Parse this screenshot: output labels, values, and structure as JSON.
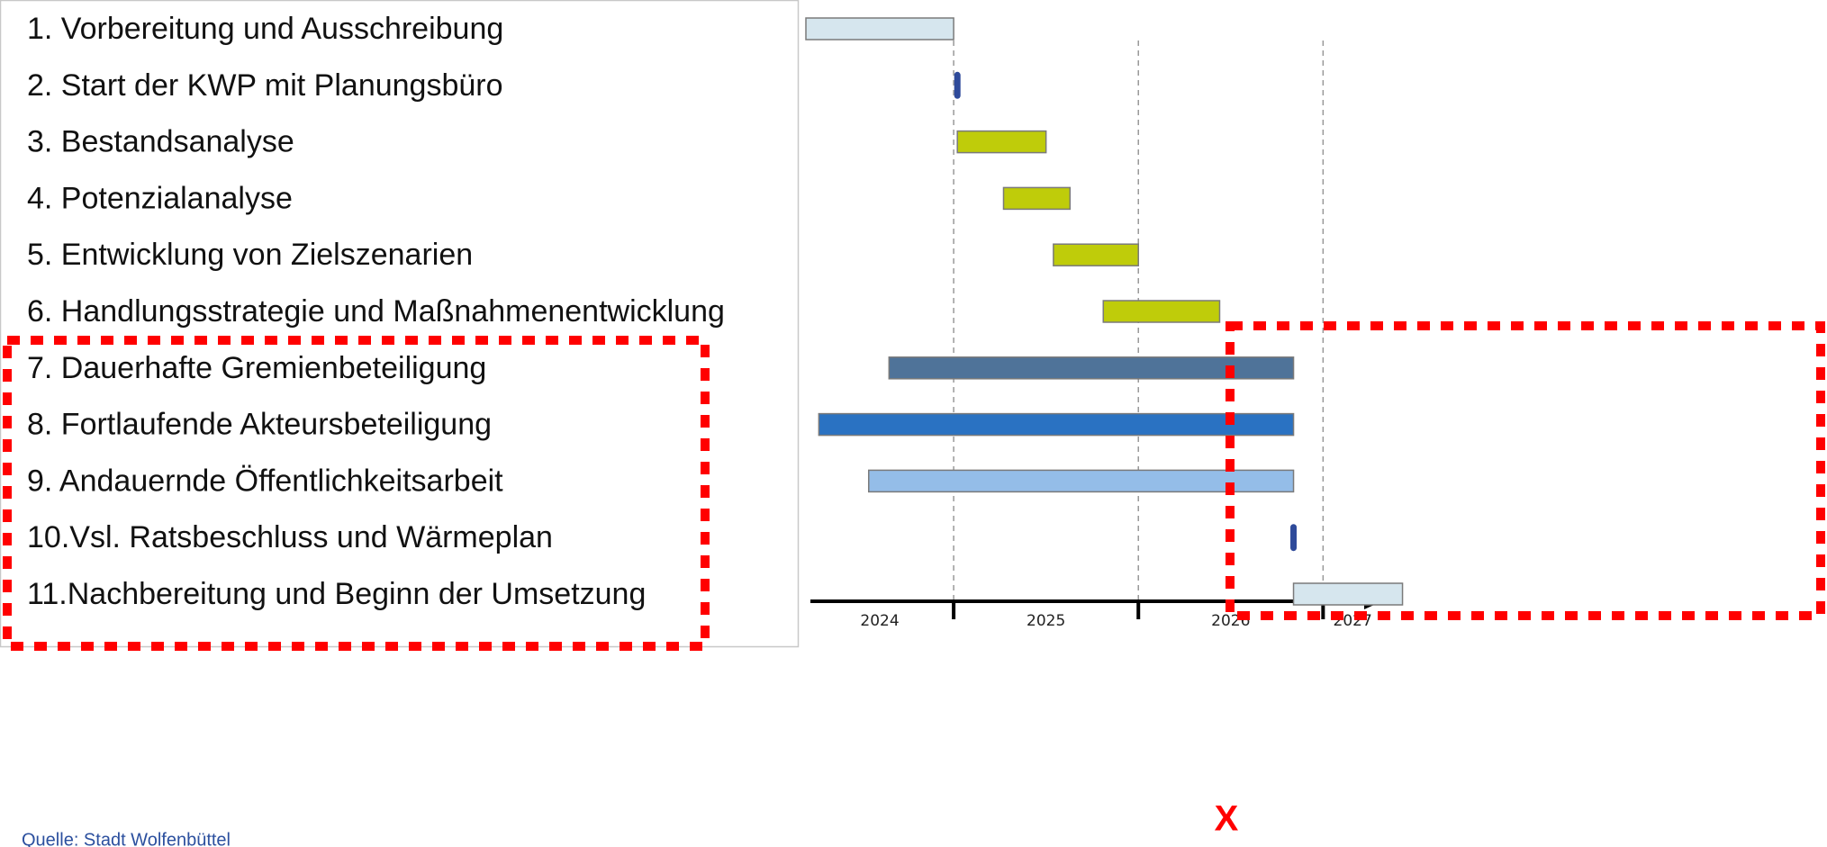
{
  "chart_data": {
    "type": "gantt",
    "tasks": [
      {
        "label": "1. Vorbereitung und Ausschreibung",
        "start": 2024.2,
        "end": 2025.0,
        "color": "#d6e6ee"
      },
      {
        "label": "2. Start der KWP mit Planungsbüro",
        "start": 2025.02,
        "end": 2025.02,
        "color": "#2e4a9a"
      },
      {
        "label": "3. Bestandsanalyse",
        "start": 2025.02,
        "end": 2025.5,
        "color": "#bfcc0a"
      },
      {
        "label": "4. Potenzialanalyse",
        "start": 2025.27,
        "end": 2025.63,
        "color": "#bfcc0a"
      },
      {
        "label": "5. Entwicklung von Zielszenarien",
        "start": 2025.54,
        "end": 2026.0,
        "color": "#bfcc0a"
      },
      {
        "label": "6. Handlungsstrategie und Maßnahmenentwicklung",
        "start": 2025.81,
        "end": 2026.44,
        "color": "#bfcc0a"
      },
      {
        "label": "7. Dauerhafte Gremienbeteiligung",
        "start": 2024.65,
        "end": 2026.84,
        "color": "#4f7399"
      },
      {
        "label": "8. Fortlaufende Akteursbeteiligung",
        "start": 2024.27,
        "end": 2026.84,
        "color": "#2a72c2"
      },
      {
        "label": "9. Andauernde Öffentlichkeitsarbeit",
        "start": 2024.54,
        "end": 2026.84,
        "color": "#94bde8"
      },
      {
        "label": "10.Vsl. Ratsbeschluss und Wärmeplan",
        "start": 2026.84,
        "end": 2026.84,
        "color": "#2e4a9a"
      },
      {
        "label": "11.Nachbereitung und Beginn der Umsetzung",
        "start": 2026.84,
        "end": 2027.43,
        "color": "#d6e6ee"
      }
    ],
    "xlim": [
      2024.2,
      2027.32
    ],
    "xticks": [
      2025,
      2026,
      2027
    ],
    "year_labels": [
      "2024",
      "2025",
      "2026",
      "2027"
    ],
    "grid": true,
    "annotation": "X",
    "source": "Quelle: Stadt Wolfenbüttel"
  }
}
